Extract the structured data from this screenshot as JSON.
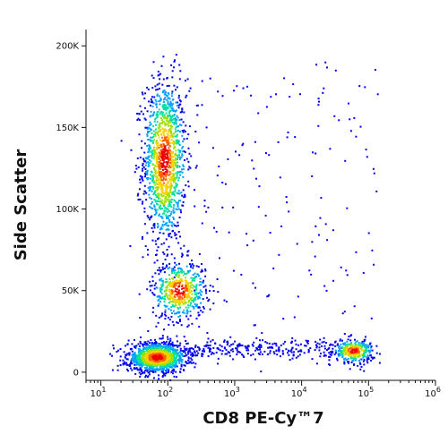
{
  "chart_data": {
    "type": "scatter",
    "title": "",
    "xlabel": "CD8 PE-Cy™7",
    "ylabel": "Side Scatter",
    "x_scale": "log",
    "xlim": [
      6,
      1000000
    ],
    "ylim": [
      -5000,
      210000
    ],
    "grid": false,
    "legend": "none",
    "x_ticks": [
      {
        "value": 10,
        "base": "10",
        "exp": "1"
      },
      {
        "value": 100,
        "base": "10",
        "exp": "2"
      },
      {
        "value": 1000,
        "base": "10",
        "exp": "3"
      },
      {
        "value": 10000,
        "base": "10",
        "exp": "4"
      },
      {
        "value": 100000,
        "base": "10",
        "exp": "5"
      },
      {
        "value": 1000000,
        "base": "10",
        "exp": "6"
      }
    ],
    "y_ticks": [
      {
        "value": 0,
        "label": "0"
      },
      {
        "value": 50000,
        "label": "50K"
      },
      {
        "value": 100000,
        "label": "100K"
      },
      {
        "value": 150000,
        "label": "150K"
      },
      {
        "value": 200000,
        "label": "200K"
      }
    ],
    "density_colors": [
      "#0000ee",
      "#00a0ff",
      "#00e0a0",
      "#a0e000",
      "#ffd000",
      "#ff6000",
      "#ee0000"
    ],
    "populations": [
      {
        "name_shown": false,
        "x_center": 90,
        "y_center": 130000,
        "x_spread_decades": 0.16,
        "y_spread": 25000,
        "points": 1300
      },
      {
        "name_shown": false,
        "x_center": 150,
        "y_center": 50000,
        "x_spread_decades": 0.2,
        "y_spread": 9000,
        "points": 550
      },
      {
        "name_shown": false,
        "x_center": 70,
        "y_center": 9000,
        "x_spread_decades": 0.22,
        "y_spread": 4500,
        "points": 1300
      },
      {
        "name_shown": false,
        "x_center": 60000,
        "y_center": 13000,
        "x_spread_decades": 0.15,
        "y_spread": 3500,
        "points": 320
      }
    ]
  }
}
